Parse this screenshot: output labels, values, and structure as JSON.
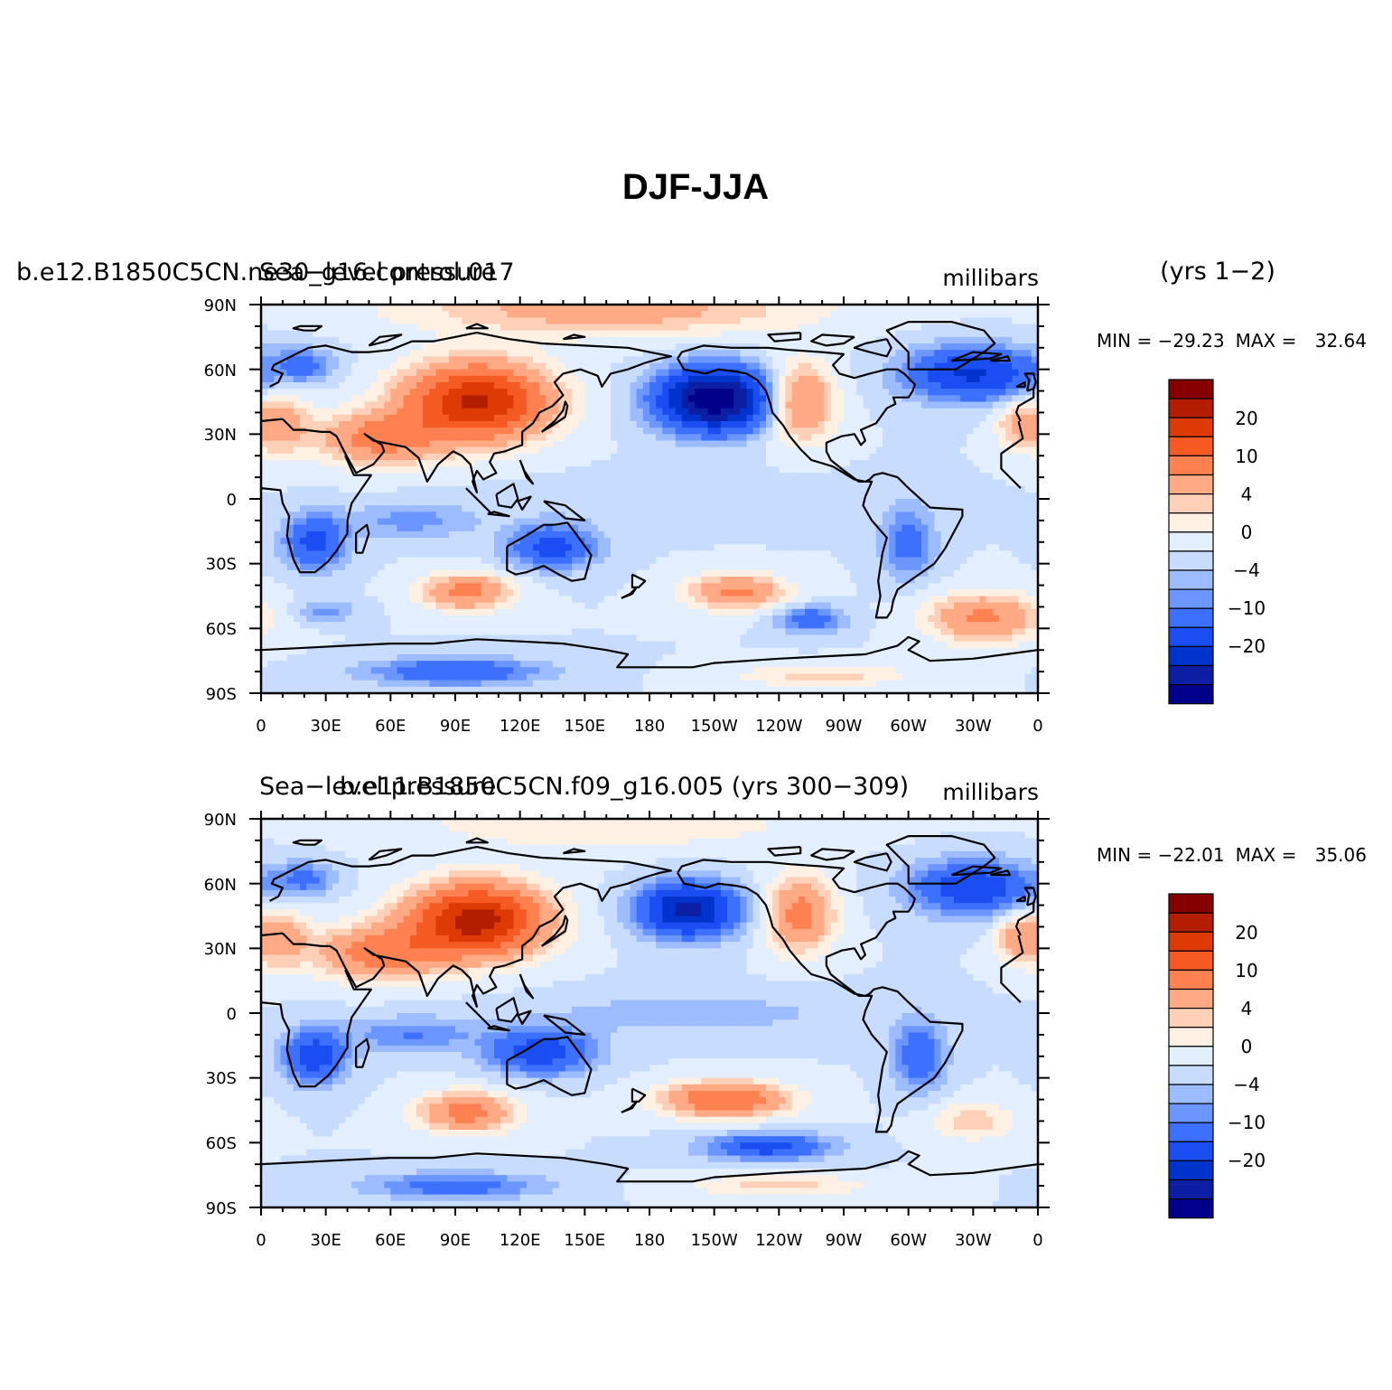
{
  "chart_data": {
    "type": "contour-map",
    "title": "DJF-JJA",
    "colors": [
      "#00008b",
      "#0c1ea3",
      "#0033cc",
      "#1a4df2",
      "#3d70ff",
      "#6b96ff",
      "#9dbbff",
      "#c7dcff",
      "#e3efff",
      "#fff0e4",
      "#ffd0b8",
      "#ffaa85",
      "#ff8050",
      "#f55a22",
      "#de3a05",
      "#b41e00",
      "#870000"
    ],
    "colorbar_labels": [
      "20",
      "10",
      "4",
      "0",
      "−4",
      "−10",
      "−20"
    ],
    "x_ticks": [
      "0",
      "30E",
      "60E",
      "90E",
      "120E",
      "150E",
      "180",
      "150W",
      "120W",
      "90W",
      "60W",
      "30W",
      "0"
    ],
    "y_ticks": [
      "90N",
      "60N",
      "30N",
      "0",
      "30S",
      "60S",
      "90S"
    ],
    "xlim": [
      0,
      360
    ],
    "ylim": [
      -90,
      90
    ],
    "panels": [
      {
        "left_title": "b.e12.B1850C5CN.ne30_g16.control.017",
        "center_title": "Sea−level pressure",
        "units": "millibars",
        "years": "(yrs 1−2)",
        "min_label": "MIN = ",
        "max_label": "MAX = ",
        "min": "−29.23",
        "max": "32.64",
        "features": [
          {
            "lon": 100,
            "lat": 45,
            "amp": 26,
            "slon": 32,
            "slat": 17
          },
          {
            "lon": 55,
            "lat": 28,
            "amp": 12,
            "slon": 28,
            "slat": 12
          },
          {
            "lon": 8,
            "lat": 35,
            "amp": 8,
            "slon": 14,
            "slat": 14
          },
          {
            "lon": 350,
            "lat": 35,
            "amp": 6,
            "slon": 10,
            "slat": 12
          },
          {
            "lon": 160,
            "lat": 88,
            "amp": 8,
            "slon": 90,
            "slat": 12
          },
          {
            "lon": 210,
            "lat": 46,
            "amp": -30,
            "slon": 25,
            "slat": 14
          },
          {
            "lon": 250,
            "lat": 45,
            "amp": 12,
            "slon": 15,
            "slat": 17
          },
          {
            "lon": 330,
            "lat": 58,
            "amp": -16,
            "slon": 30,
            "slat": 12
          },
          {
            "lon": 20,
            "lat": 62,
            "amp": -7,
            "slon": 14,
            "slat": 8
          },
          {
            "lon": 25,
            "lat": -20,
            "amp": -12,
            "slon": 14,
            "slat": 12
          },
          {
            "lon": 135,
            "lat": -22,
            "amp": -12,
            "slon": 20,
            "slat": 10
          },
          {
            "lon": 300,
            "lat": -20,
            "amp": -8,
            "slon": 12,
            "slat": 16
          },
          {
            "lon": 70,
            "lat": -10,
            "amp": -5,
            "slon": 30,
            "slat": 8
          },
          {
            "lon": 95,
            "lat": -43,
            "amp": 12,
            "slon": 20,
            "slat": 8
          },
          {
            "lon": 220,
            "lat": -43,
            "amp": 11,
            "slon": 22,
            "slat": 8
          },
          {
            "lon": 335,
            "lat": -55,
            "amp": 11,
            "slon": 25,
            "slat": 11
          },
          {
            "lon": 255,
            "lat": -56,
            "amp": -9,
            "slon": 15,
            "slat": 6
          },
          {
            "lon": 30,
            "lat": -52,
            "amp": -5,
            "slon": 14,
            "slat": 5
          },
          {
            "lon": 90,
            "lat": -80,
            "amp": -10,
            "slon": 40,
            "slat": 6
          },
          {
            "lon": 260,
            "lat": -82,
            "amp": 5,
            "slon": 40,
            "slat": 5
          },
          {
            "lon": 200,
            "lat": 0,
            "amp": -2,
            "slon": 80,
            "slat": 10
          }
        ]
      },
      {
        "left_title": "",
        "center_title": "Sea−level pressure",
        "center_title_2": "b.e11.B1850C5CN.f09_g16.005 (yrs 300−309)",
        "units": "millibars",
        "years": "",
        "min_label": "MIN = ",
        "max_label": "MAX = ",
        "min": "−22.01",
        "max": "35.06",
        "features": [
          {
            "lon": 100,
            "lat": 43,
            "amp": 28,
            "slon": 30,
            "slat": 16
          },
          {
            "lon": 55,
            "lat": 28,
            "amp": 13,
            "slon": 28,
            "slat": 12
          },
          {
            "lon": 8,
            "lat": 35,
            "amp": 8,
            "slon": 14,
            "slat": 14
          },
          {
            "lon": 350,
            "lat": 35,
            "amp": 7,
            "slon": 10,
            "slat": 12
          },
          {
            "lon": 160,
            "lat": 88,
            "amp": 4,
            "slon": 90,
            "slat": 12
          },
          {
            "lon": 198,
            "lat": 48,
            "amp": -22,
            "slon": 22,
            "slat": 12
          },
          {
            "lon": 250,
            "lat": 46,
            "amp": 12,
            "slon": 15,
            "slat": 17
          },
          {
            "lon": 330,
            "lat": 58,
            "amp": -14,
            "slon": 28,
            "slat": 12
          },
          {
            "lon": 20,
            "lat": 62,
            "amp": -7,
            "slon": 14,
            "slat": 8
          },
          {
            "lon": 25,
            "lat": -20,
            "amp": -13,
            "slon": 14,
            "slat": 12
          },
          {
            "lon": 130,
            "lat": -18,
            "amp": -13,
            "slon": 24,
            "slat": 10
          },
          {
            "lon": 305,
            "lat": -20,
            "amp": -9,
            "slon": 12,
            "slat": 16
          },
          {
            "lon": 70,
            "lat": -10,
            "amp": -6,
            "slon": 30,
            "slat": 8
          },
          {
            "lon": 95,
            "lat": -46,
            "amp": 12,
            "slon": 22,
            "slat": 9
          },
          {
            "lon": 215,
            "lat": -40,
            "amp": 15,
            "slon": 28,
            "slat": 8
          },
          {
            "lon": 330,
            "lat": -50,
            "amp": 5,
            "slon": 20,
            "slat": 9
          },
          {
            "lon": 235,
            "lat": -62,
            "amp": -12,
            "slon": 28,
            "slat": 6
          },
          {
            "lon": 90,
            "lat": -80,
            "amp": -8,
            "slon": 40,
            "slat": 6
          },
          {
            "lon": 240,
            "lat": -80,
            "amp": 5,
            "slon": 40,
            "slat": 5
          },
          {
            "lon": 200,
            "lat": 0,
            "amp": -3,
            "slon": 80,
            "slat": 10
          }
        ]
      }
    ]
  }
}
